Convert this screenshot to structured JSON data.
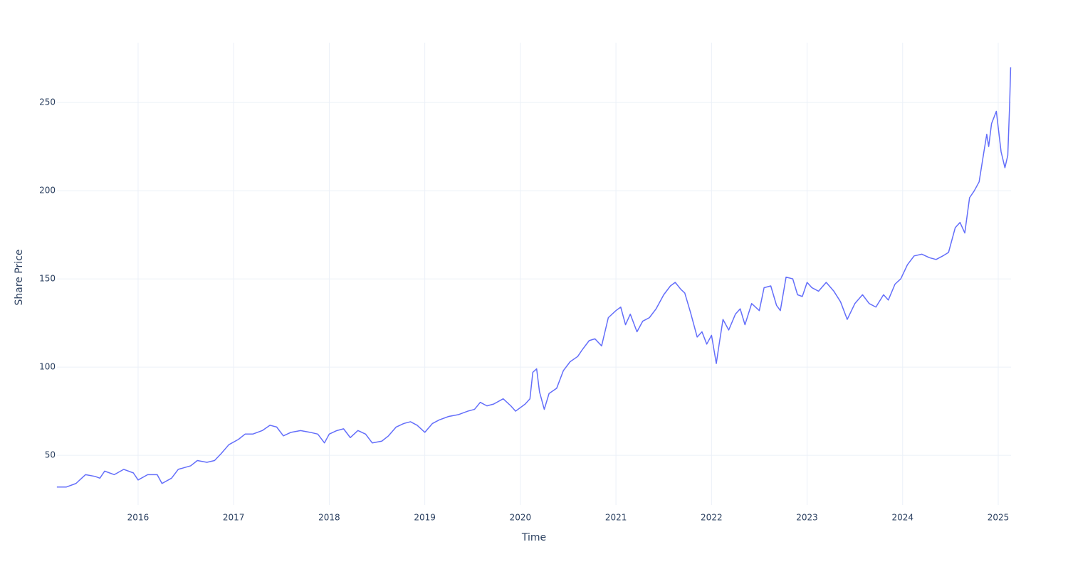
{
  "chart_data": {
    "type": "line",
    "x_label": "Time",
    "y_label": "Share Price",
    "xlim": [
      2015.151,
      2025.134
    ],
    "xticks": [
      2016,
      2017,
      2018,
      2019,
      2020,
      2021,
      2022,
      2023,
      2024,
      2025
    ],
    "ylim": [
      21.8,
      283.9
    ],
    "yticks": [
      50,
      100,
      150,
      200,
      250
    ],
    "grid": true,
    "series": [
      {
        "color": "#636efa",
        "x": [
          2015.15,
          2015.25,
          2015.35,
          2015.45,
          2015.55,
          2015.6,
          2015.65,
          2015.75,
          2015.85,
          2015.95,
          2016.0,
          2016.1,
          2016.2,
          2016.25,
          2016.35,
          2016.42,
          2016.55,
          2016.62,
          2016.72,
          2016.8,
          2016.87,
          2016.95,
          2017.05,
          2017.12,
          2017.2,
          2017.3,
          2017.38,
          2017.45,
          2017.52,
          2017.6,
          2017.7,
          2017.8,
          2017.88,
          2017.95,
          2018.0,
          2018.08,
          2018.15,
          2018.22,
          2018.3,
          2018.38,
          2018.45,
          2018.55,
          2018.62,
          2018.7,
          2018.78,
          2018.85,
          2018.92,
          2019.0,
          2019.08,
          2019.15,
          2019.25,
          2019.35,
          2019.45,
          2019.52,
          2019.58,
          2019.65,
          2019.72,
          2019.82,
          2019.9,
          2019.95,
          2020.05,
          2020.1,
          2020.13,
          2020.17,
          2020.2,
          2020.25,
          2020.3,
          2020.38,
          2020.45,
          2020.52,
          2020.6,
          2020.65,
          2020.72,
          2020.78,
          2020.85,
          2020.92,
          2021.0,
          2021.05,
          2021.1,
          2021.15,
          2021.22,
          2021.28,
          2021.35,
          2021.42,
          2021.5,
          2021.57,
          2021.62,
          2021.68,
          2021.72,
          2021.78,
          2021.85,
          2021.9,
          2021.95,
          2022.0,
          2022.05,
          2022.08,
          2022.12,
          2022.18,
          2022.25,
          2022.3,
          2022.35,
          2022.42,
          2022.5,
          2022.55,
          2022.62,
          2022.68,
          2022.72,
          2022.78,
          2022.85,
          2022.9,
          2022.95,
          2023.0,
          2023.05,
          2023.12,
          2023.2,
          2023.28,
          2023.35,
          2023.42,
          2023.5,
          2023.58,
          2023.65,
          2023.72,
          2023.8,
          2023.85,
          2023.92,
          2023.98,
          2024.05,
          2024.12,
          2024.2,
          2024.28,
          2024.35,
          2024.42,
          2024.48,
          2024.55,
          2024.6,
          2024.65,
          2024.7,
          2024.75,
          2024.8,
          2024.85,
          2024.88,
          2024.9,
          2024.93,
          2024.98,
          2025.03,
          2025.07,
          2025.1,
          2025.12,
          2025.13
        ],
        "values": [
          32,
          32,
          34,
          39,
          38,
          37,
          41,
          39,
          42,
          40,
          36,
          39,
          39,
          34,
          37,
          42,
          44,
          47,
          46,
          47,
          51,
          56,
          59,
          62,
          62,
          64,
          67,
          66,
          61,
          63,
          64,
          63,
          62,
          57,
          62,
          64,
          65,
          60,
          64,
          62,
          57,
          58,
          61,
          66,
          68,
          69,
          67,
          63,
          68,
          70,
          72,
          73,
          75,
          76,
          80,
          78,
          79,
          82,
          78,
          75,
          79,
          82,
          97,
          99,
          86,
          76,
          85,
          88,
          98,
          103,
          106,
          110,
          115,
          116,
          112,
          128,
          132,
          134,
          124,
          130,
          120,
          126,
          128,
          133,
          141,
          146,
          148,
          144,
          142,
          131,
          117,
          120,
          113,
          118,
          102,
          113,
          127,
          121,
          130,
          133,
          124,
          136,
          132,
          145,
          146,
          135,
          132,
          151,
          150,
          141,
          140,
          148,
          145,
          143,
          148,
          143,
          137,
          127,
          136,
          141,
          136,
          134,
          141,
          138,
          147,
          150,
          158,
          163,
          164,
          162,
          161,
          163,
          165,
          179,
          182,
          176,
          196,
          200,
          205,
          222,
          232,
          225,
          238,
          245,
          222,
          213,
          220,
          250,
          270
        ]
      }
    ]
  }
}
